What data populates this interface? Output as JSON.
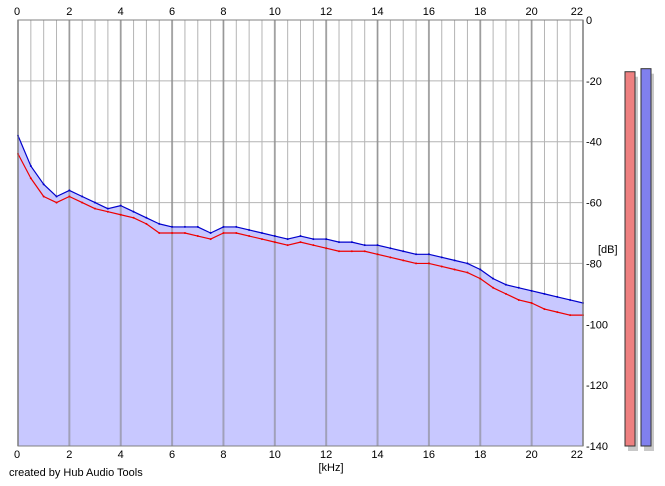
{
  "credit": "created by Hub Audio Tools",
  "chart_data": {
    "type": "area",
    "xlabel": "[kHz]",
    "ylabel": "[dB]",
    "xlim": [
      0,
      22
    ],
    "ylim": [
      -140,
      0
    ],
    "x_ticks": [
      0,
      2,
      4,
      6,
      8,
      10,
      12,
      14,
      16,
      18,
      20,
      22
    ],
    "y_ticks": [
      0,
      -20,
      -40,
      -60,
      -80,
      -100,
      -120,
      -140
    ],
    "y_tick_labels": [
      "0",
      "-20",
      "-40",
      "-60",
      "-80",
      "-100",
      "-120",
      "-140"
    ],
    "grid": true,
    "colors": {
      "left": "#ee0000",
      "right": "#0000cc",
      "fill": "#c8c8ff",
      "grid": "#b4b4b4",
      "major_grid": "#808080"
    },
    "series": [
      {
        "color": "#ee0000",
        "x": [
          0,
          0.5,
          1,
          1.5,
          2,
          2.5,
          3,
          3.5,
          4,
          4.5,
          5,
          5.5,
          6,
          6.5,
          7,
          7.5,
          8,
          8.5,
          9,
          9.5,
          10,
          10.5,
          11,
          11.5,
          12,
          12.5,
          13,
          13.5,
          14,
          14.5,
          15,
          15.5,
          16,
          16.5,
          17,
          17.5,
          18,
          18.5,
          19,
          19.5,
          20,
          20.5,
          21,
          21.5,
          22
        ],
        "values": [
          -44,
          -52,
          -58,
          -60,
          -58,
          -60,
          -62,
          -63,
          -64,
          -65,
          -67,
          -70,
          -70,
          -70,
          -71,
          -72,
          -70,
          -70,
          -71,
          -72,
          -73,
          -74,
          -73,
          -74,
          -75,
          -76,
          -76,
          -76,
          -77,
          -78,
          -79,
          -80,
          -80,
          -81,
          -82,
          -83,
          -85,
          -88,
          -90,
          -92,
          -93,
          -95,
          -96,
          -97,
          -97
        ]
      },
      {
        "color": "#0000cc",
        "x": [
          0,
          0.5,
          1,
          1.5,
          2,
          2.5,
          3,
          3.5,
          4,
          4.5,
          5,
          5.5,
          6,
          6.5,
          7,
          7.5,
          8,
          8.5,
          9,
          9.5,
          10,
          10.5,
          11,
          11.5,
          12,
          12.5,
          13,
          13.5,
          14,
          14.5,
          15,
          15.5,
          16,
          16.5,
          17,
          17.5,
          18,
          18.5,
          19,
          19.5,
          20,
          20.5,
          21,
          21.5,
          22
        ],
        "values": [
          -38,
          -48,
          -54,
          -58,
          -56,
          -58,
          -60,
          -62,
          -61,
          -63,
          -65,
          -67,
          -68,
          -68,
          -68,
          -70,
          -68,
          -68,
          -69,
          -70,
          -71,
          -72,
          -71,
          -72,
          -72,
          -73,
          -73,
          -74,
          -74,
          -75,
          -76,
          -77,
          -77,
          -78,
          -79,
          -80,
          -82,
          -85,
          -87,
          -88,
          -89,
          -90,
          -91,
          -92,
          -93
        ]
      }
    ],
    "meters": [
      {
        "channel": "left",
        "color": "#ee8080",
        "value": -17
      },
      {
        "channel": "right",
        "color": "#8080ee",
        "value": -16
      }
    ]
  }
}
